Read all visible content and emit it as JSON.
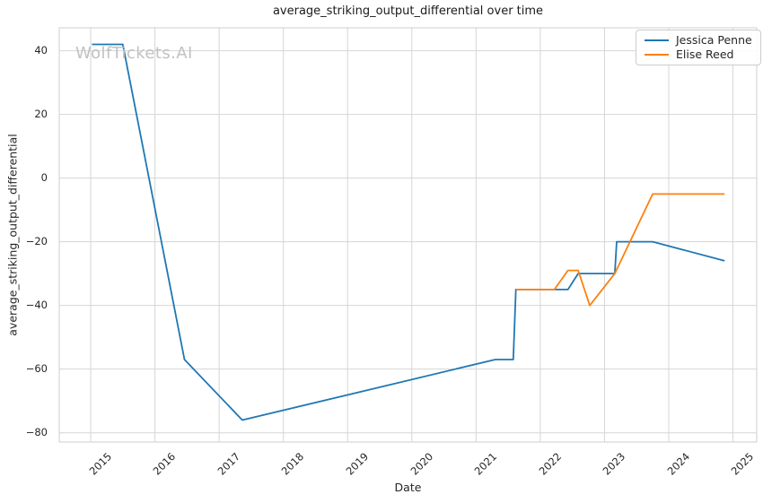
{
  "figure": {
    "watermark": "WolfTickets.AI"
  },
  "chart_data": {
    "type": "line",
    "title": "average_striking_output_differential over time",
    "xlabel": "Date",
    "ylabel": "average_striking_output_differential",
    "x_unit": "decimal_year",
    "xlim": [
      2014.51,
      2025.37
    ],
    "ylim": [
      -82.9,
      47.2
    ],
    "xticks": [
      2015,
      2016,
      2017,
      2018,
      2019,
      2020,
      2021,
      2022,
      2023,
      2024,
      2025
    ],
    "yticks": [
      40,
      20,
      0,
      -20,
      -40,
      -60,
      -80
    ],
    "grid": true,
    "legend_position": "upper right",
    "series": [
      {
        "name": "Jessica Penne",
        "color": "#1f77b4",
        "points": [
          [
            2015.02,
            42
          ],
          [
            2015.5,
            42
          ],
          [
            2016.46,
            -57
          ],
          [
            2017.36,
            -76
          ],
          [
            2021.3,
            -57
          ],
          [
            2021.58,
            -57
          ],
          [
            2021.62,
            -35
          ],
          [
            2022.43,
            -35
          ],
          [
            2022.59,
            -30
          ],
          [
            2023.16,
            -30
          ],
          [
            2023.19,
            -20
          ],
          [
            2023.75,
            -20
          ],
          [
            2024.87,
            -26
          ]
        ]
      },
      {
        "name": "Elise Reed",
        "color": "#ff7f0e",
        "points": [
          [
            2021.62,
            -35
          ],
          [
            2022.22,
            -35
          ],
          [
            2022.43,
            -29
          ],
          [
            2022.59,
            -29
          ],
          [
            2022.77,
            -40
          ],
          [
            2023.16,
            -30
          ],
          [
            2023.75,
            -5
          ],
          [
            2024.87,
            -5
          ]
        ]
      }
    ]
  },
  "colors": {
    "series_blue": "#1f77b4",
    "series_orange": "#ff7f0e",
    "grid": "#d6d6d6",
    "spine": "#cfcfcf",
    "text": "#262626",
    "watermark": "#c2c2c2",
    "background": "#ffffff"
  }
}
